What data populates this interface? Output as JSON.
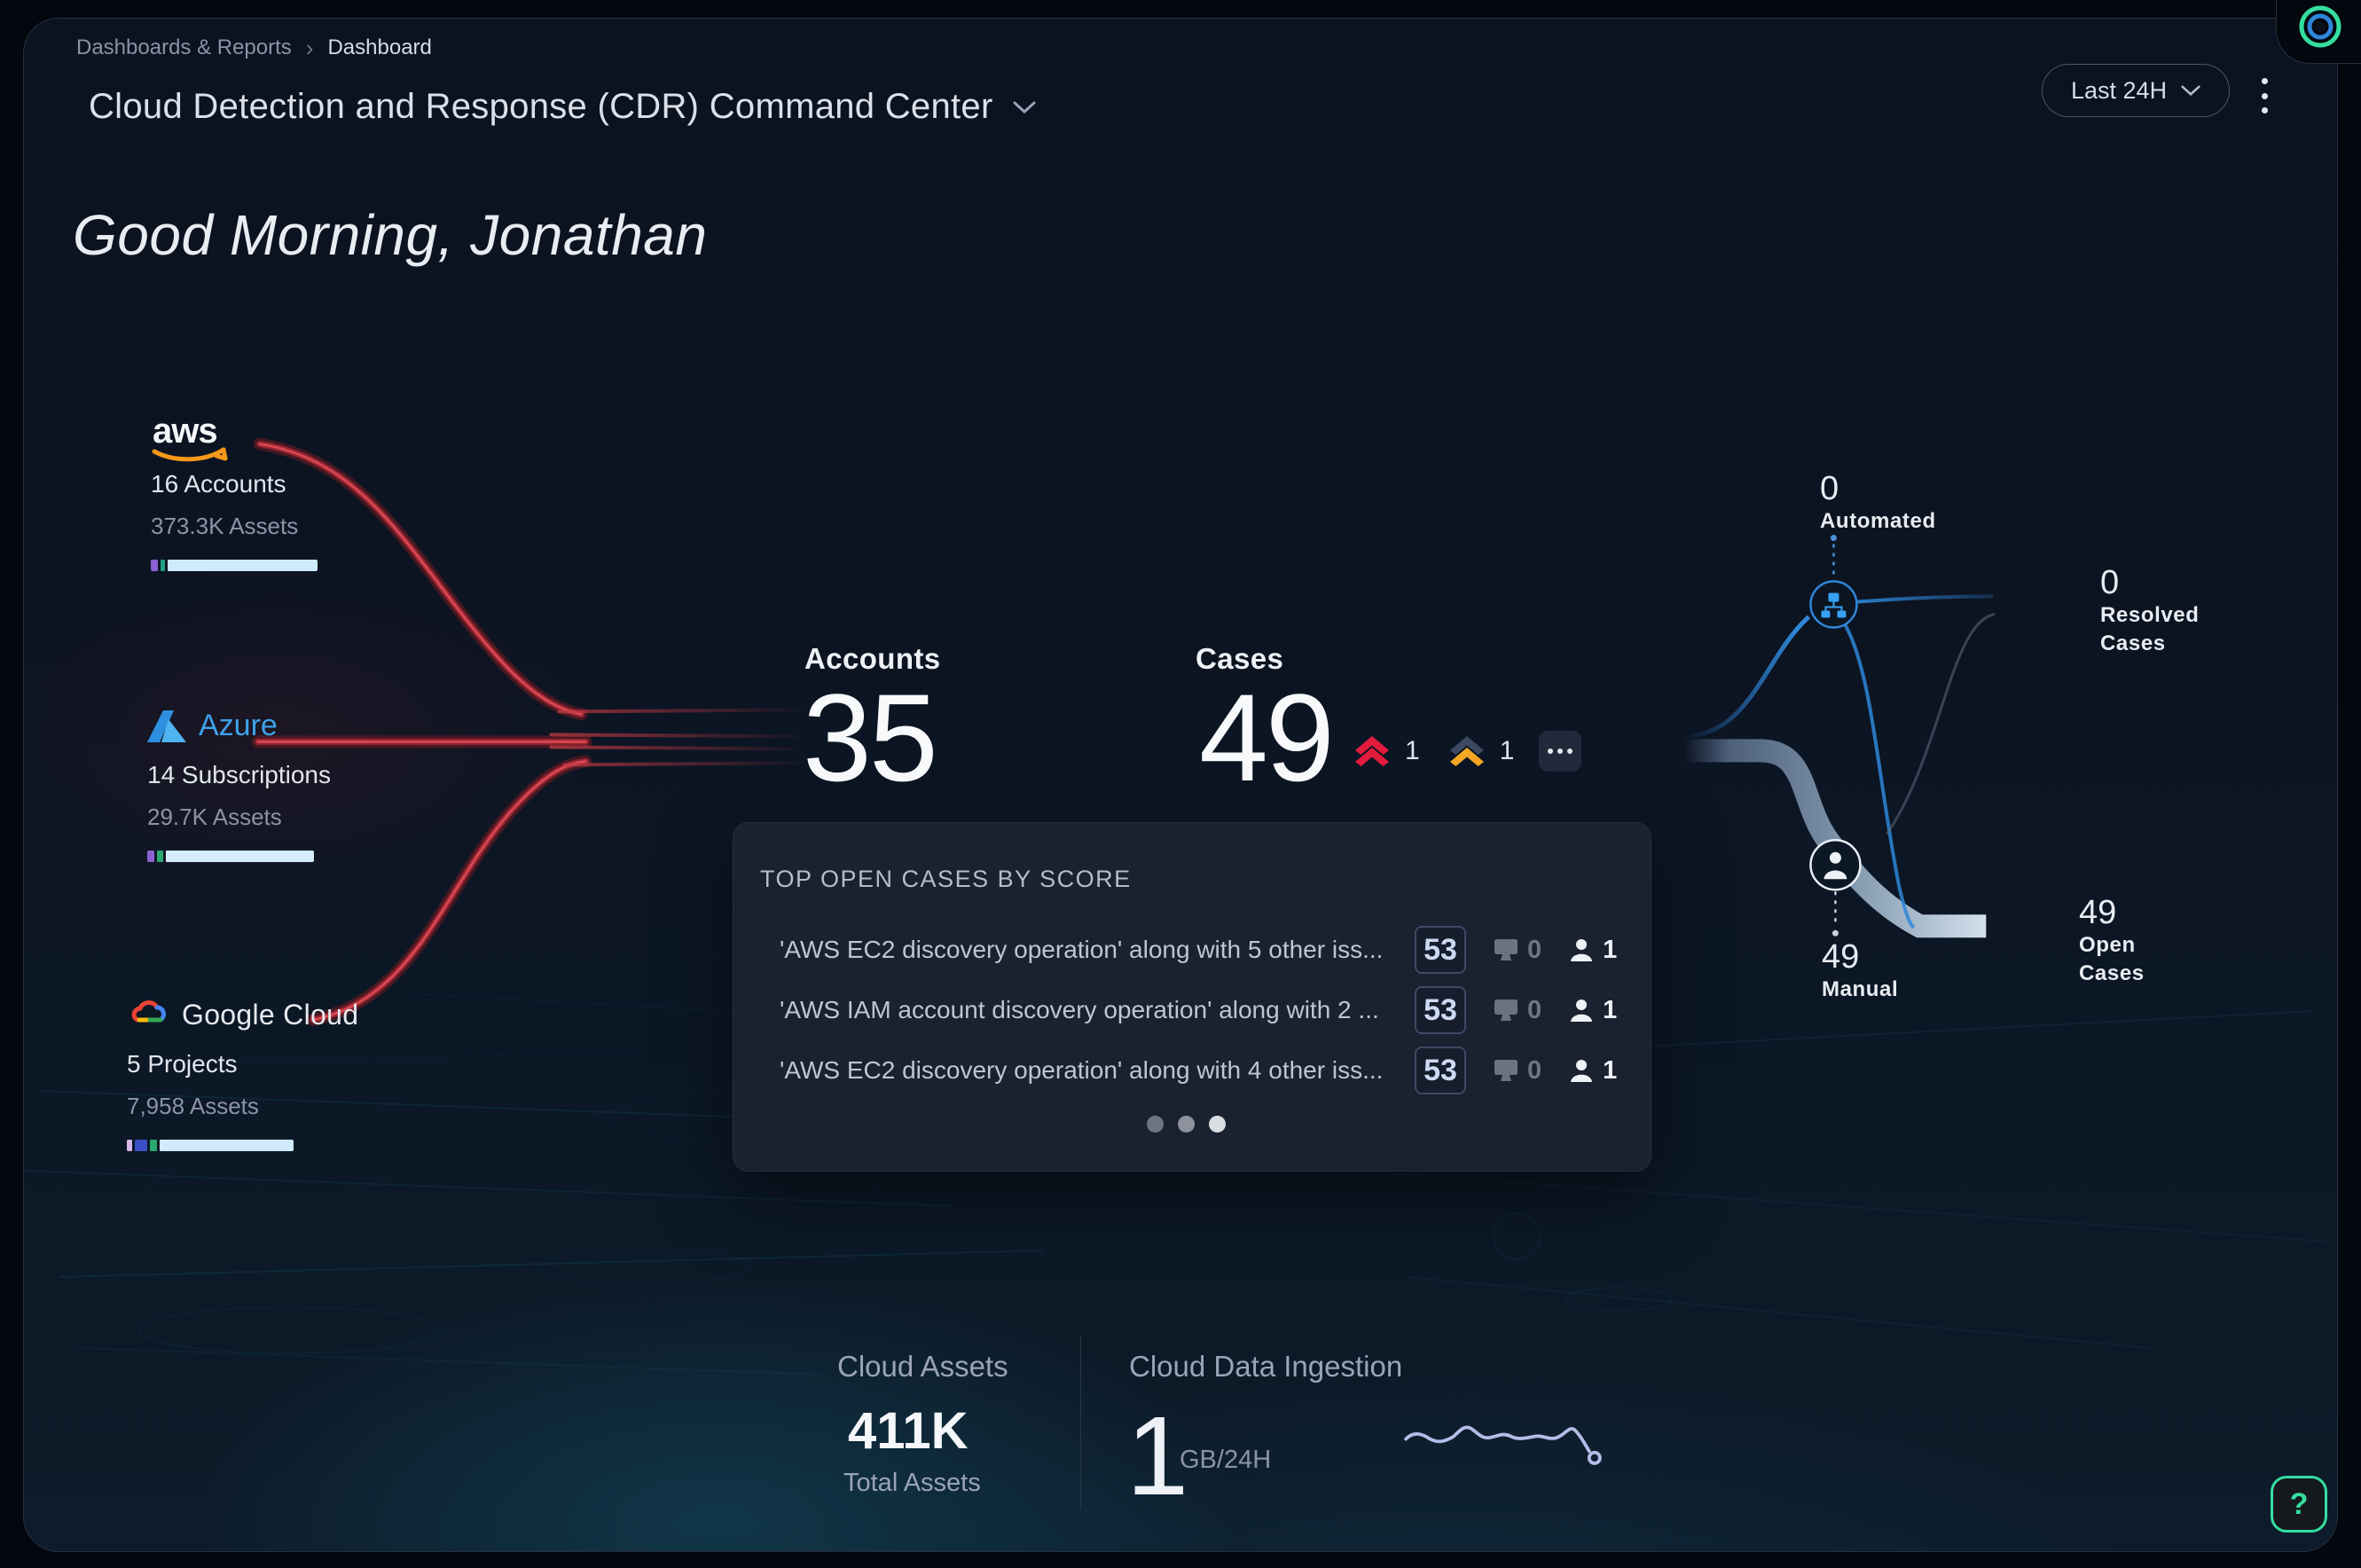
{
  "breadcrumb": {
    "items": [
      "Dashboards & Reports",
      "Dashboard"
    ],
    "separator": "›"
  },
  "header": {
    "title": "Cloud Detection and Response (CDR) Command Center",
    "time_range": "Last 24H"
  },
  "greeting": {
    "text": "Good Morning, Jonathan"
  },
  "providers": [
    {
      "name": "aws",
      "logo_text": "aws",
      "count": "16 Accounts",
      "assets": "373.3K Assets",
      "bar": [
        {
          "color": "#8a63d2",
          "pct": 4
        },
        {
          "color": "#1fa081",
          "pct": 3
        },
        {
          "color": "#cfeafc",
          "pct": 90
        }
      ]
    },
    {
      "name": "azure",
      "logo_text": "Azure",
      "count": "14 Subscriptions",
      "assets": "29.7K Assets",
      "bar": [
        {
          "color": "#8a63d2",
          "pct": 4
        },
        {
          "color": "#2aa870",
          "pct": 4
        },
        {
          "color": "#d4ecfb",
          "pct": 89
        }
      ]
    },
    {
      "name": "google-cloud",
      "logo_text": "Google Cloud",
      "count": "5 Projects",
      "assets": "7,958 Assets",
      "bar": [
        {
          "color": "#d9b8ec",
          "pct": 3
        },
        {
          "color": "#3b4fc4",
          "pct": 8
        },
        {
          "color": "#2aa870",
          "pct": 4
        },
        {
          "color": "#cfeafc",
          "pct": 82
        }
      ]
    }
  ],
  "kpis": {
    "accounts": {
      "label": "Accounts",
      "value": "35"
    },
    "cases": {
      "label": "Cases",
      "value": "49",
      "severities": [
        {
          "name": "critical",
          "count": "1"
        },
        {
          "name": "medium",
          "count": "1"
        }
      ]
    }
  },
  "top_cases": {
    "title": "TOP OPEN CASES BY SCORE",
    "rows": [
      {
        "name": "'AWS EC2 discovery operation' along with 5 other iss...",
        "score": "53",
        "alerts": "0",
        "assignees": "1"
      },
      {
        "name": "'AWS IAM account discovery operation' along with 2 ...",
        "score": "53",
        "alerts": "0",
        "assignees": "1"
      },
      {
        "name": "'AWS EC2 discovery operation' along with 4 other iss...",
        "score": "53",
        "alerts": "0",
        "assignees": "1"
      }
    ],
    "pagination": {
      "dots": 3,
      "active_index": 2
    }
  },
  "sankey": {
    "automated": {
      "value": "0",
      "label": "Automated"
    },
    "resolved": {
      "value": "0",
      "label": "Resolved Cases"
    },
    "manual": {
      "value": "49",
      "label": "Manual"
    },
    "open": {
      "value": "49",
      "label": "Open Cases"
    }
  },
  "footer": {
    "cloud_assets": {
      "title": "Cloud Assets",
      "value": "411K",
      "subtitle": "Total Assets"
    },
    "ingestion": {
      "title": "Cloud Data Ingestion",
      "value": "1",
      "unit": "GB/24H"
    }
  },
  "help": {
    "label": "?"
  },
  "colors": {
    "severity_critical": "#e31b3d",
    "severity_medium_top": "#3c4963",
    "severity_medium": "#f5a623",
    "accent_blue": "#2f86d9",
    "brand_green": "#35dea0",
    "flow_red": "#c23a44",
    "aws_orange": "#f49819",
    "azure_blue": "#3ea2ea"
  }
}
